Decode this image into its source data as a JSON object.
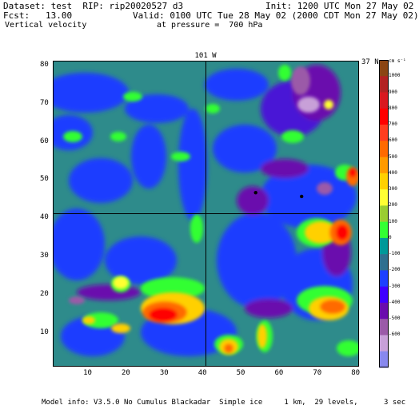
{
  "header": {
    "dataset_line": "Dataset: test  RIP: rip20020527 d3",
    "init_line": "Init: 1200 UTC Mon 27 May 02",
    "fcst_label": "Fcst:   13.00",
    "valid_line": "Valid: 0100 UTC Tue 28 May 02 (2000 CDT Mon 27 May 02)",
    "field_name": "Vertical velocity",
    "pressure_line": "at pressure =  700 hPa"
  },
  "map": {
    "top_label": "101 W",
    "right_label": "37 N",
    "x_ticks": [
      "10",
      "20",
      "30",
      "40",
      "50",
      "60",
      "70",
      "80"
    ],
    "y_ticks": [
      "10",
      "20",
      "30",
      "40",
      "50",
      "60",
      "70",
      "80"
    ],
    "x_range": [
      1,
      81
    ],
    "y_range": [
      1,
      81
    ],
    "meridian_x": 41,
    "parallel_y": 41,
    "points": [
      {
        "x": 54,
        "y": 46.5
      },
      {
        "x": 66,
        "y": 45.5
      }
    ]
  },
  "colorbar": {
    "units": "cm s⁻¹",
    "levels": [
      "1000",
      "900",
      "800",
      "700",
      "600",
      "500",
      "400",
      "300",
      "200",
      "100",
      "0",
      "-100",
      "-200",
      "-300",
      "-400",
      "-500",
      "-600"
    ],
    "colors": [
      "#8b4513",
      "#b22222",
      "#d9181f",
      "#ff0000",
      "#ff3d1f",
      "#ff6a00",
      "#ff9a00",
      "#ffd000",
      "#ffff33",
      "#9acd32",
      "#33ff33",
      "#009999",
      "#2f6f8f",
      "#1e40ff",
      "#3f00ff",
      "#6a0dad",
      "#9b5aa8",
      "#c8a0d8",
      "#8888ee"
    ]
  },
  "footer": {
    "model_info": "Model info: V3.5.0 No Cumulus Blackadar  Simple ice     1 km,  29 levels,      3 sec"
  }
}
